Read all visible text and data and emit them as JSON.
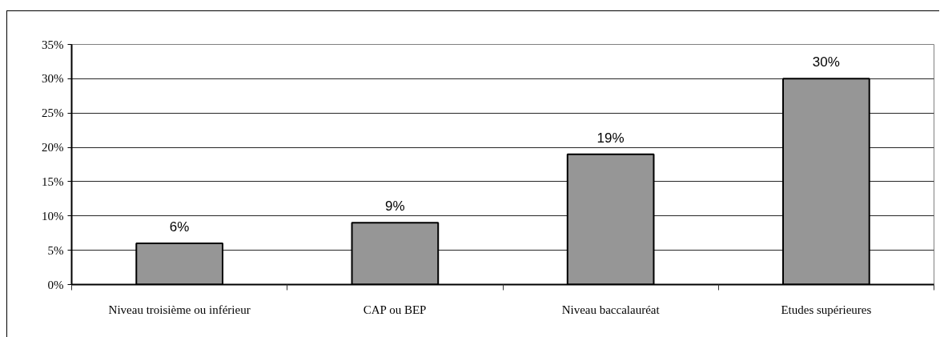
{
  "chart_data": {
    "type": "bar",
    "categories": [
      "Niveau troisième ou inférieur",
      "CAP ou BEP",
      "Niveau baccalauréat",
      "Etudes supérieures"
    ],
    "values": [
      6,
      9,
      19,
      30
    ],
    "color": "#969696",
    "value_labels": [
      "6%",
      "9%",
      "19%",
      "30%"
    ],
    "ylim": [
      0,
      35
    ],
    "yticks": [
      {
        "value": 0,
        "label": "0%"
      },
      {
        "value": 5,
        "label": "5%"
      },
      {
        "value": 10,
        "label": "10%"
      },
      {
        "value": 15,
        "label": "15%"
      },
      {
        "value": 20,
        "label": "20%"
      },
      {
        "value": 25,
        "label": "25%"
      },
      {
        "value": 30,
        "label": "30%"
      },
      {
        "value": 35,
        "label": "35%"
      }
    ],
    "grid": "y"
  }
}
